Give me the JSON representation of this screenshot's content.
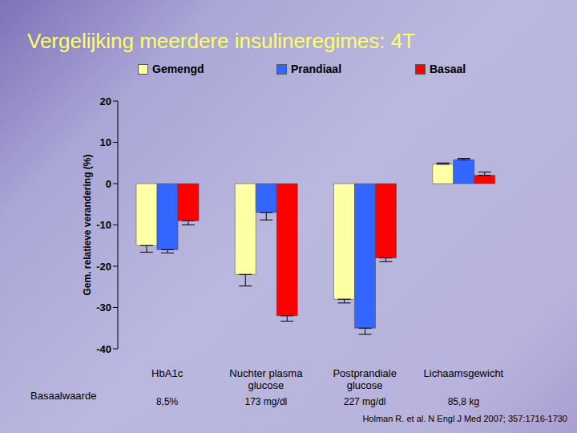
{
  "chart_data": {
    "type": "bar",
    "title": "Vergelijking meerdere insulineregimes: 4T",
    "y_label": "Gem. relatieve verandering (%)",
    "categories": [
      "HbA1c",
      "Nuchter plasma glucose",
      "Postprandiale glucose",
      "Lichaamsgewicht"
    ],
    "series": [
      {
        "name": "Gemengd",
        "color": "#ffffa6",
        "values": [
          -15,
          -22,
          -28,
          4.7
        ],
        "errors": [
          1.6,
          2.8,
          0.9,
          0.3
        ]
      },
      {
        "name": "Prandiaal",
        "color": "#3366ff",
        "values": [
          -16,
          -7,
          -35,
          5.8
        ],
        "errors": [
          0.8,
          1.8,
          1.5,
          0.3
        ]
      },
      {
        "name": "Basaal",
        "color": "#ff0000",
        "values": [
          -9,
          -32,
          -18,
          2.0
        ],
        "errors": [
          1.0,
          1.3,
          0.9,
          0.8
        ]
      }
    ],
    "ylim": [
      -40,
      20
    ],
    "yticks": [
      -40,
      -30,
      -20,
      -10,
      0,
      10,
      20
    ],
    "grid": false,
    "legend": "top",
    "baseline": {
      "label": "Basaalwaarde",
      "values": [
        "8,5%",
        "173 mg/dl",
        "227 mg/dl",
        "85,8 kg"
      ]
    },
    "source": "Holman R. et al. N Engl J Med 2007; 357:1716-1730"
  }
}
